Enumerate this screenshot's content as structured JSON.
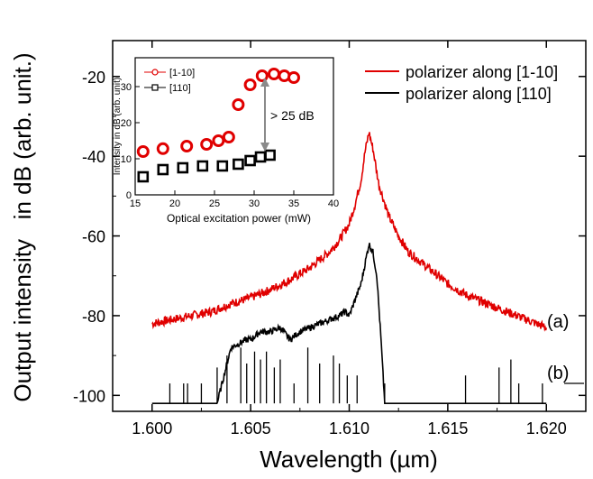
{
  "chart_data": [
    {
      "type": "line",
      "title": "",
      "xlabel": "Wavelength (µm)",
      "ylabel": "Output intensity   in dB (arb. unit.)",
      "xlim": [
        1.598,
        1.622
      ],
      "ylim": [
        -104,
        -11
      ],
      "xticks": [
        1.6,
        1.605,
        1.61,
        1.615,
        1.62
      ],
      "xtick_labels": [
        "1.600",
        "1.605",
        "1.610",
        "1.615",
        "1.620"
      ],
      "yticks": [
        -100,
        -80,
        -60,
        -40,
        -20
      ],
      "ytick_labels": [
        "-100",
        "-80",
        "-60",
        "-40",
        "-20"
      ],
      "grid": false,
      "legend_position": "top-right",
      "series": [
        {
          "name": "polarizer along [1-10]",
          "color": "#e00000",
          "x": [
            1.6,
            1.601,
            1.602,
            1.603,
            1.604,
            1.605,
            1.606,
            1.607,
            1.608,
            1.609,
            1.6095,
            1.61,
            1.6103,
            1.6106,
            1.6108,
            1.611,
            1.6112,
            1.6115,
            1.612,
            1.6125,
            1.613,
            1.614,
            1.615,
            1.616,
            1.617,
            1.618,
            1.619,
            1.62
          ],
          "y": [
            -82,
            -81,
            -80,
            -79,
            -77,
            -75.5,
            -73.5,
            -71,
            -68,
            -64,
            -61,
            -57,
            -52,
            -46,
            -39,
            -34,
            -38,
            -47,
            -55,
            -60,
            -64,
            -68,
            -72,
            -75,
            -77,
            -79,
            -81,
            -83
          ]
        },
        {
          "name": "polarizer along [110]",
          "color": "#000000",
          "x": [
            1.6,
            1.6008,
            1.601,
            1.6015,
            1.6017,
            1.602,
            1.6025,
            1.603,
            1.6033,
            1.6035,
            1.604,
            1.6048,
            1.605,
            1.6055,
            1.606,
            1.6065,
            1.607,
            1.6075,
            1.608,
            1.6085,
            1.609,
            1.6095,
            1.6098,
            1.61,
            1.6103,
            1.6106,
            1.6108,
            1.611,
            1.6112,
            1.6114,
            1.6116,
            1.6118,
            1.612,
            1.613,
            1.614,
            1.615,
            1.616,
            1.617,
            1.618,
            1.619,
            1.62
          ],
          "y": [
            -102,
            -102,
            -102,
            -102,
            -102,
            -102,
            -102,
            -102,
            -102,
            -98,
            -88,
            -86,
            -86,
            -84,
            -84,
            -83,
            -86,
            -84,
            -83,
            -82,
            -81,
            -80,
            -79,
            -80,
            -76,
            -72,
            -67,
            -62,
            -64,
            -70,
            -85,
            -102,
            -102,
            -102,
            -102,
            -102,
            -102,
            -102,
            -102,
            -102,
            -102
          ]
        },
        {
          "name": "",
          "color": "#000000",
          "style": "spikes",
          "x": [
            1.6009,
            1.6016,
            1.6018,
            1.6025,
            1.6033,
            1.6038,
            1.6045,
            1.6048,
            1.6052,
            1.6055,
            1.6058,
            1.6062,
            1.6065,
            1.6072,
            1.6079,
            1.6085,
            1.6092,
            1.6095,
            1.6099,
            1.6104,
            1.6118,
            1.6159,
            1.6176,
            1.6182,
            1.6186,
            1.6198
          ],
          "y": [
            -97,
            -97,
            -97,
            -97,
            -93,
            -90,
            -88,
            -92,
            -89,
            -91,
            -89,
            -93,
            -91,
            -97,
            -88,
            -92,
            -90,
            -92,
            -95,
            -95,
            -97,
            -95,
            -93,
            -91,
            -97,
            -97
          ]
        }
      ],
      "annotations": [
        "(a)",
        "(b)"
      ]
    },
    {
      "type": "scatter",
      "title": "",
      "xlabel": "Optical excitation power (mW)",
      "ylabel": "Intensity in dB (arb. unit)",
      "xlim": [
        15,
        40
      ],
      "ylim": [
        0,
        38
      ],
      "xticks": [
        15,
        20,
        25,
        30,
        35,
        40
      ],
      "xtick_labels": [
        "15",
        "20",
        "25",
        "30",
        "35",
        "40"
      ],
      "yticks": [
        0,
        10,
        20,
        30
      ],
      "ytick_labels": [
        "0",
        "10",
        "20",
        "30"
      ],
      "grid": false,
      "legend_position": "top-left",
      "series": [
        {
          "name": "[1-10]",
          "color": "#e00000",
          "marker": "circle",
          "x": [
            16.0,
            18.5,
            21.5,
            24.0,
            25.5,
            26.8,
            28.0,
            29.5,
            31.0,
            32.5,
            33.8,
            35.0
          ],
          "y": [
            12.0,
            12.8,
            13.5,
            14.0,
            15.0,
            16.0,
            25.0,
            30.5,
            33.0,
            33.5,
            33.0,
            32.5
          ]
        },
        {
          "name": "[110]",
          "color": "#000000",
          "marker": "square",
          "x": [
            16.0,
            18.5,
            21.0,
            23.5,
            26.0,
            28.0,
            29.5,
            30.8,
            32.0
          ],
          "y": [
            5.0,
            7.0,
            7.5,
            8.0,
            8.0,
            8.5,
            9.5,
            10.5,
            11.0
          ]
        }
      ],
      "annotations": [
        "> 25 dB"
      ]
    }
  ]
}
